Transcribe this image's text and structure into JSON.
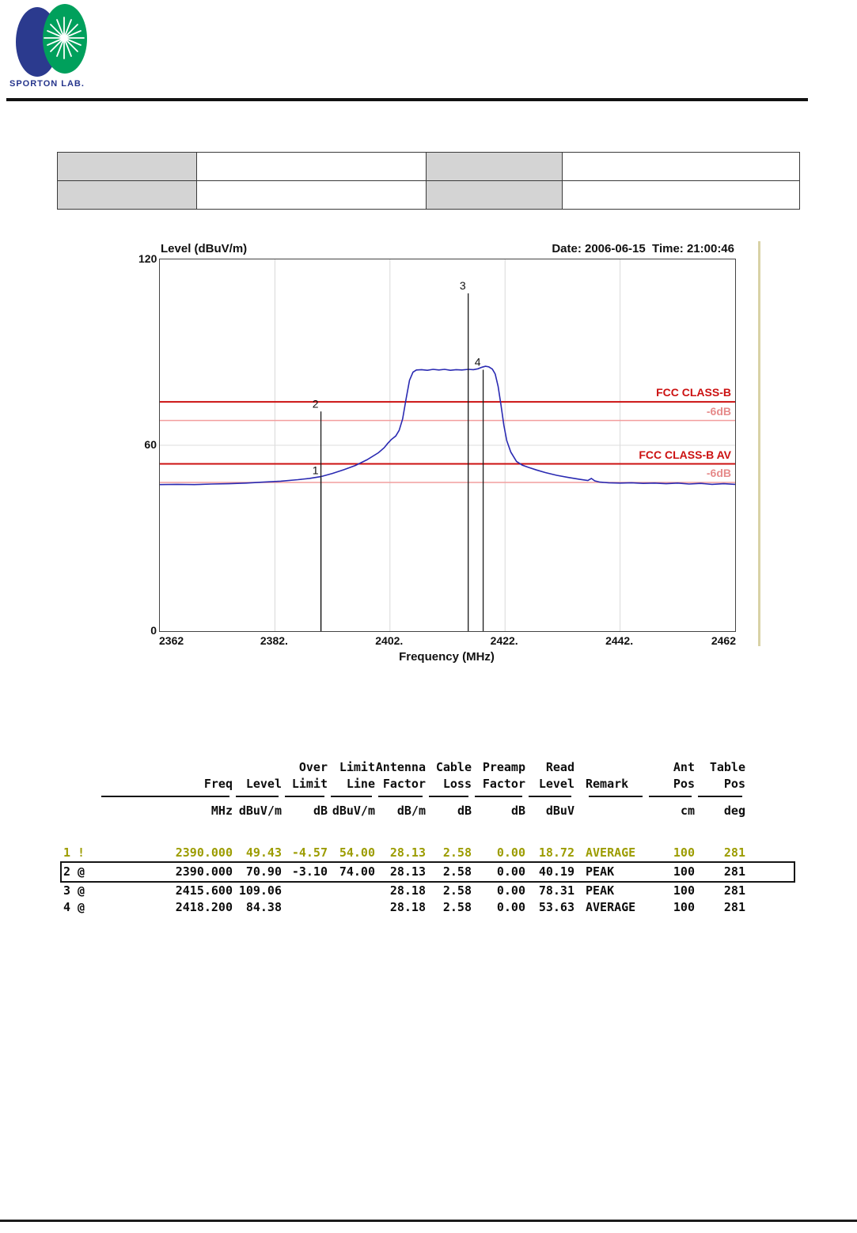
{
  "logo": {
    "text": "SPORTON LAB.",
    "blue": "#2b3a8e",
    "green": "#00a05c"
  },
  "info_table": {
    "rows": [
      [
        "",
        "",
        "",
        ""
      ],
      [
        "",
        "",
        "",
        ""
      ]
    ]
  },
  "chart_data": {
    "type": "line",
    "title": "Level (dBuV/m)",
    "datetime": "Date: 2006-06-15  Time: 21:00:46",
    "xlabel": "Frequency (MHz)",
    "xlim": [
      2362,
      2462
    ],
    "ylim": [
      0,
      120
    ],
    "x_ticks": [
      "2362",
      "2382.",
      "2402.",
      "2422.",
      "2442.",
      "2462"
    ],
    "x_tick_values": [
      2362,
      2382,
      2402,
      2422,
      2442,
      2462
    ],
    "y_ticks": [
      "120",
      "60",
      "0"
    ],
    "y_tick_values": [
      120,
      60,
      0
    ],
    "grid_x_values": [
      2382,
      2402,
      2422,
      2442
    ],
    "grid_y_values": [
      60
    ],
    "trace_color": "#2a2ab2",
    "limit_lines": [
      {
        "label": "FCC CLASS-B",
        "level": 74,
        "color": "#cc1111",
        "label_color": "#cc1111",
        "strong": true
      },
      {
        "label": "-6dB",
        "level": 68,
        "color": "#f29e9e",
        "label_color": "#e68a8a",
        "strong": false
      },
      {
        "label": "FCC CLASS-B AV",
        "level": 54,
        "color": "#cc1111",
        "label_color": "#cc1111",
        "strong": true
      },
      {
        "label": "-6dB",
        "level": 48,
        "color": "#f29e9e",
        "label_color": "#e68a8a",
        "strong": false
      }
    ],
    "markers": [
      {
        "label": "1",
        "freq": 2390.0,
        "level": 49.43
      },
      {
        "label": "2",
        "freq": 2390.0,
        "level": 70.9
      },
      {
        "label": "3",
        "freq": 2415.6,
        "level": 109.06
      },
      {
        "label": "4",
        "freq": 2418.2,
        "level": 84.38
      }
    ],
    "trace": [
      [
        2362,
        47.3
      ],
      [
        2365,
        47.4
      ],
      [
        2368,
        47.3
      ],
      [
        2371,
        47.5
      ],
      [
        2374,
        47.6
      ],
      [
        2377,
        47.8
      ],
      [
        2380,
        48.1
      ],
      [
        2383,
        48.4
      ],
      [
        2386,
        48.9
      ],
      [
        2388,
        49.3
      ],
      [
        2390,
        49.9
      ],
      [
        2392,
        50.9
      ],
      [
        2394,
        52.1
      ],
      [
        2396,
        53.5
      ],
      [
        2398,
        55.3
      ],
      [
        2400,
        57.6
      ],
      [
        2401,
        59.2
      ],
      [
        2401.6,
        60.6
      ],
      [
        2402.2,
        61.8
      ],
      [
        2403,
        63.0
      ],
      [
        2403.6,
        64.8
      ],
      [
        2404.2,
        68.5
      ],
      [
        2404.8,
        75.0
      ],
      [
        2405.4,
        81.0
      ],
      [
        2406,
        83.6
      ],
      [
        2406.6,
        84.3
      ],
      [
        2407.5,
        84.4
      ],
      [
        2408.5,
        84.2
      ],
      [
        2409.5,
        84.5
      ],
      [
        2410.5,
        84.3
      ],
      [
        2411.5,
        84.5
      ],
      [
        2412.5,
        84.2
      ],
      [
        2413.5,
        84.4
      ],
      [
        2414.5,
        84.3
      ],
      [
        2415.6,
        84.5
      ],
      [
        2416.5,
        84.4
      ],
      [
        2417.3,
        84.7
      ],
      [
        2418,
        85.2
      ],
      [
        2418.6,
        85.5
      ],
      [
        2419.2,
        85.3
      ],
      [
        2419.8,
        84.6
      ],
      [
        2420.3,
        83.0
      ],
      [
        2420.8,
        79.0
      ],
      [
        2421.3,
        73.0
      ],
      [
        2421.8,
        66.5
      ],
      [
        2422.3,
        61.5
      ],
      [
        2423,
        57.8
      ],
      [
        2424,
        54.8
      ],
      [
        2425,
        53.6
      ],
      [
        2426,
        52.9
      ],
      [
        2427.5,
        52.0
      ],
      [
        2429,
        51.2
      ],
      [
        2431,
        50.3
      ],
      [
        2433,
        49.6
      ],
      [
        2435,
        49.0
      ],
      [
        2436.4,
        48.6
      ],
      [
        2437,
        49.3
      ],
      [
        2437.6,
        48.5
      ],
      [
        2438.5,
        48.1
      ],
      [
        2440,
        47.9
      ],
      [
        2442,
        47.8
      ],
      [
        2444,
        47.9
      ],
      [
        2446,
        47.7
      ],
      [
        2448,
        47.8
      ],
      [
        2450,
        47.6
      ],
      [
        2452,
        47.8
      ],
      [
        2454,
        47.5
      ],
      [
        2456,
        47.7
      ],
      [
        2458,
        47.4
      ],
      [
        2460,
        47.6
      ],
      [
        2462,
        47.4
      ]
    ]
  },
  "results_table": {
    "header_line1": [
      "",
      "",
      "",
      "Over",
      "Limit",
      "Antenna",
      "Cable",
      "Preamp",
      "Read",
      "",
      "Ant",
      "Table"
    ],
    "header_line2": [
      "",
      "Freq",
      "Level",
      "Limit",
      "Line",
      "Factor",
      "Loss",
      "Factor",
      "Level",
      "Remark",
      "Pos",
      "Pos"
    ],
    "units": [
      "",
      "MHz",
      "dBuV/m",
      "dB",
      "dBuV/m",
      "dB/m",
      "dB",
      "dB",
      "dBuV",
      "",
      "cm",
      "deg"
    ],
    "olive_color": "#9c9c00",
    "rows": [
      {
        "cells": [
          "1 !",
          "2390.000",
          "49.43",
          "-4.57",
          "54.00",
          "28.13",
          "2.58",
          "0.00",
          "18.72",
          "AVERAGE",
          "100",
          "281"
        ],
        "highlight": "olive",
        "boxed": false
      },
      {
        "cells": [
          "2 @",
          "2390.000",
          "70.90",
          "-3.10",
          "74.00",
          "28.13",
          "2.58",
          "0.00",
          "40.19",
          "PEAK",
          "100",
          "281"
        ],
        "highlight": "none",
        "boxed": true
      },
      {
        "cells": [
          "3 @",
          "2415.600",
          "109.06",
          "",
          "",
          "28.18",
          "2.58",
          "0.00",
          "78.31",
          "PEAK",
          "100",
          "281"
        ],
        "highlight": "none",
        "boxed": false
      },
      {
        "cells": [
          "4 @",
          "2418.200",
          "84.38",
          "",
          "",
          "28.18",
          "2.58",
          "0.00",
          "53.63",
          "AVERAGE",
          "100",
          "281"
        ],
        "highlight": "none",
        "boxed": false
      }
    ]
  }
}
